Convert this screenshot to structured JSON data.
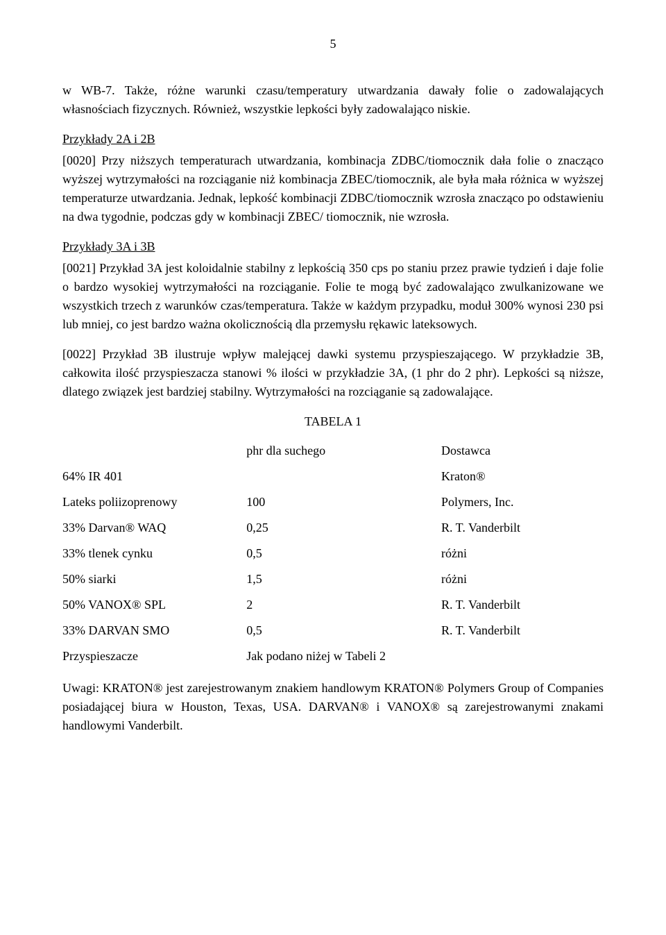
{
  "pageNumber": "5",
  "para1": "w WB-7. Także, różne warunki czasu/temperatury utwardzania dawały folie o zadowalających własnościach fizycznych. Również, wszystkie lepkości były zadowalająco niskie.",
  "heading1": "Przykłady 2A i 2B",
  "para2": "[0020] Przy niższych temperaturach utwardzania, kombinacja ZDBC/tiomocznik dała folie o znacząco wyższej wytrzymałości na rozciąganie niż kombinacja ZBEC/tiomocznik, ale była mała różnica w wyższej temperaturze utwardzania. Jednak, lepkość kombinacji ZDBC/tiomocznik wzrosła znacząco po odstawieniu na dwa tygodnie, podczas gdy w kombinacji ZBEC/ tiomocznik, nie wzrosła.",
  "heading2": "Przykłady 3A i 3B",
  "para3": "[0021] Przykład 3A jest koloidalnie stabilny z lepkością 350 cps po staniu przez prawie tydzień i daje folie o bardzo wysokiej wytrzymałości na rozciąganie. Folie te mogą być zadowalająco zwulkanizowane we wszystkich trzech z warunków czas/temperatura. Także w każdym przypadku, moduł 300% wynosi 230 psi lub mniej, co jest bardzo ważna okolicznością dla przemysłu rękawic lateksowych.",
  "para4": "[0022] Przykład 3B ilustruje wpływ malejącej dawki systemu przyspieszającego. W przykładzie 3B, całkowita ilość przyspieszacza stanowi % ilości w przykładzie 3A, (1 phr do 2 phr). Lepkości są niższe, dlatego związek jest bardziej stabilny. Wytrzymałości na rozciąganie są zadowalające.",
  "tableTitle": "TABELA 1",
  "table": {
    "header": {
      "c1": "",
      "c2": "phr dla suchego",
      "c3": "Dostawca"
    },
    "rows": [
      {
        "c1": "64% IR 401",
        "c2": "",
        "c3": "Kraton®"
      },
      {
        "c1": "Lateks poliizoprenowy",
        "c2": "100",
        "c3": "Polymers, Inc."
      },
      {
        "c1": "33% Darvan® WAQ",
        "c2": "0,25",
        "c3": "R. T. Vanderbilt"
      },
      {
        "c1": "33% tlenek cynku",
        "c2": "0,5",
        "c3": "różni"
      },
      {
        "c1": "50% siarki",
        "c2": "1,5",
        "c3": "różni"
      },
      {
        "c1": "50% VANOX® SPL",
        "c2": "2",
        "c3": "R. T. Vanderbilt"
      },
      {
        "c1": "33% DARVAN SMO",
        "c2": "0,5",
        "c3": "R. T. Vanderbilt"
      },
      {
        "c1": "Przyspieszacze",
        "c2": "Jak podano niżej w Tabeli 2",
        "c3": ""
      }
    ]
  },
  "footnote": "Uwagi: KRATON® jest zarejestrowanym znakiem handlowym KRATON® Polymers Group of Companies posiadającej biura w Houston, Texas, USA. DARVAN® i VANOX® są zarejestrowanymi znakami handlowymi Vanderbilt."
}
